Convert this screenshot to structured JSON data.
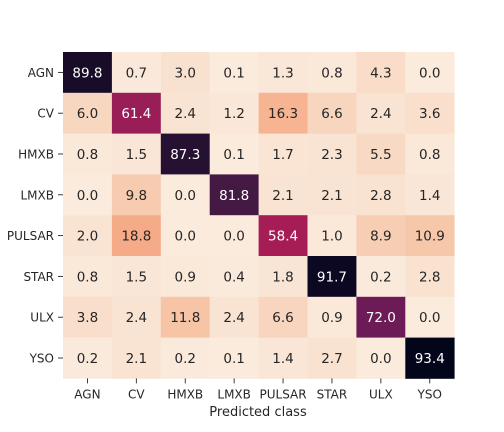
{
  "chart_data": {
    "type": "heatmap",
    "xlabel": "Predicted class",
    "ylabel": "",
    "x_categories": [
      "AGN",
      "CV",
      "HMXB",
      "LMXB",
      "PULSAR",
      "STAR",
      "ULX",
      "YSO"
    ],
    "y_categories": [
      "AGN",
      "CV",
      "HMXB",
      "LMXB",
      "PULSAR",
      "STAR",
      "ULX",
      "YSO"
    ],
    "values": [
      [
        89.8,
        0.7,
        3.0,
        0.1,
        1.3,
        0.8,
        4.3,
        0.0
      ],
      [
        6.0,
        61.4,
        2.4,
        1.2,
        16.3,
        6.6,
        2.4,
        3.6
      ],
      [
        0.8,
        1.5,
        87.3,
        0.1,
        1.7,
        2.3,
        5.5,
        0.8
      ],
      [
        0.0,
        9.8,
        0.0,
        81.8,
        2.1,
        2.1,
        2.8,
        1.4
      ],
      [
        2.0,
        18.8,
        0.0,
        0.0,
        58.4,
        1.0,
        8.9,
        10.9
      ],
      [
        0.8,
        1.5,
        0.9,
        0.4,
        1.8,
        91.7,
        0.2,
        2.8
      ],
      [
        3.8,
        2.4,
        11.8,
        2.4,
        6.6,
        0.9,
        72.0,
        0.0
      ],
      [
        0.2,
        2.1,
        0.2,
        0.1,
        1.4,
        2.7,
        0.0,
        93.4
      ]
    ],
    "value_format": "0.1f",
    "colormap": "rocket_r",
    "vmin": 0,
    "vmax": 93.4,
    "colorbar": false,
    "grid": false
  }
}
